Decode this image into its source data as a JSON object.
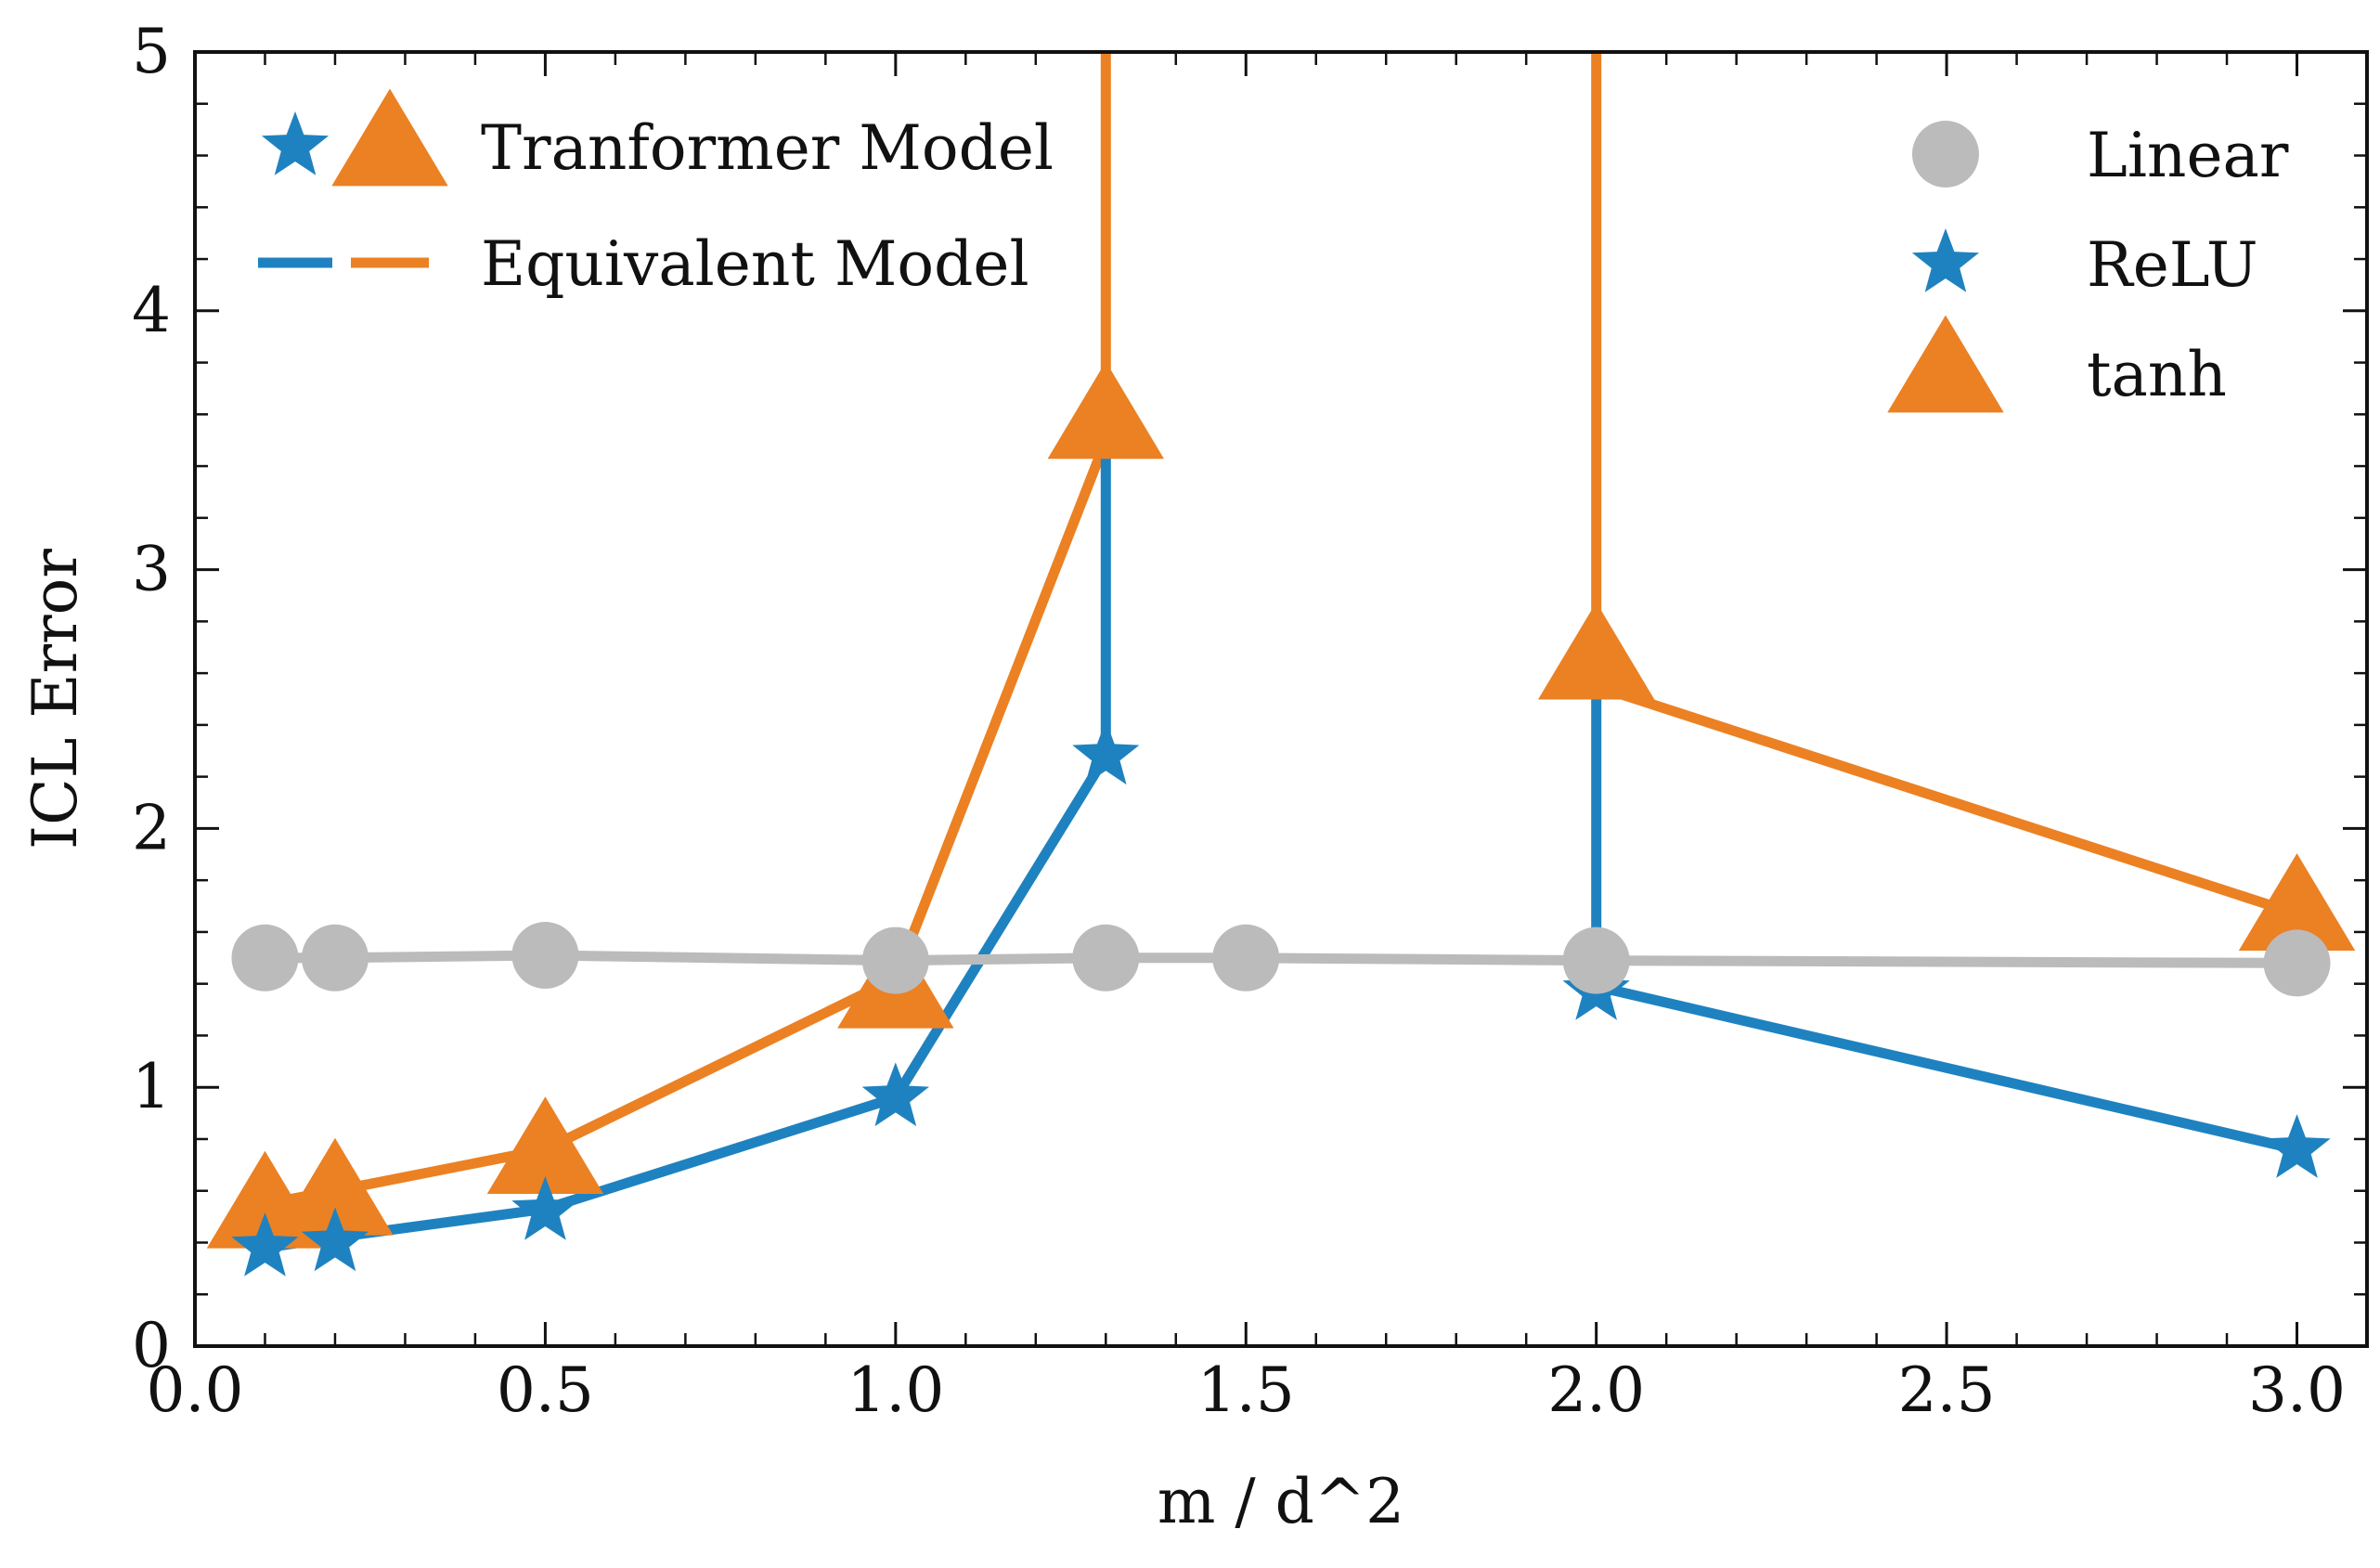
{
  "chart_data": {
    "type": "line",
    "xlabel": "m / d^2",
    "ylabel": "ICL Error",
    "xlim": [
      0.0,
      3.1
    ],
    "ylim": [
      0,
      5
    ],
    "xticks": [
      0.0,
      0.5,
      1.0,
      1.5,
      2.0,
      2.5,
      3.0
    ],
    "xtick_labels": [
      "0.0",
      "0.5",
      "1.0",
      "1.5",
      "2.0",
      "2.5",
      "3.0"
    ],
    "yticks": [
      0,
      1,
      2,
      3,
      4,
      5
    ],
    "ytick_labels": [
      "0",
      "1",
      "2",
      "3",
      "4",
      "5"
    ],
    "x_minor_step": 0.1,
    "y_minor_step": 0.2,
    "series": [
      {
        "name": "Linear",
        "color": "#bbbbbb",
        "marker": "circle",
        "points": [
          [
            0.1,
            1.5
          ],
          [
            0.2,
            1.5
          ],
          [
            0.5,
            1.51
          ],
          [
            1.0,
            1.49
          ],
          [
            1.3,
            1.5
          ],
          [
            1.5,
            1.5
          ],
          [
            2.0,
            1.49
          ],
          [
            3.0,
            1.48
          ]
        ]
      },
      {
        "name": "ReLU",
        "color": "#1f82c0",
        "marker": "star",
        "points": [
          [
            0.1,
            0.38
          ],
          [
            0.2,
            0.4
          ],
          [
            0.5,
            0.52
          ],
          [
            1.0,
            0.96
          ],
          [
            1.3,
            2.28
          ],
          [
            2.0,
            1.37
          ],
          [
            3.0,
            0.76
          ]
        ],
        "equivalent_line": [
          [
            0.1,
            0.38
          ],
          [
            0.2,
            0.42
          ],
          [
            0.5,
            0.53
          ],
          [
            1.0,
            0.96
          ],
          [
            1.3,
            2.28
          ],
          [
            1.3,
            3.45
          ],
          [
            null,
            null
          ],
          [
            2.0,
            2.58
          ],
          [
            2.0,
            1.39
          ],
          [
            3.0,
            0.76
          ]
        ]
      },
      {
        "name": "tanh",
        "color": "#eb8123",
        "marker": "triangle",
        "points": [
          [
            0.1,
            0.53
          ],
          [
            0.2,
            0.58
          ],
          [
            0.5,
            0.74
          ],
          [
            1.0,
            1.38
          ],
          [
            1.3,
            3.58
          ],
          [
            2.0,
            2.65
          ],
          [
            3.0,
            1.68
          ]
        ],
        "equivalent_line": [
          [
            0.1,
            0.55
          ],
          [
            0.2,
            0.6
          ],
          [
            0.5,
            0.76
          ],
          [
            1.0,
            1.42
          ],
          [
            1.3,
            3.5
          ],
          [
            1.3,
            5.0
          ],
          [
            null,
            null
          ],
          [
            2.0,
            5.0
          ],
          [
            2.0,
            2.55
          ],
          [
            3.0,
            1.67
          ]
        ]
      }
    ],
    "legend_left": {
      "position": "top-left",
      "entries": [
        {
          "label": "Tranformer Model",
          "markers": [
            "star",
            "triangle"
          ]
        },
        {
          "label": "Equivalent Model",
          "lines": [
            "#1f82c0",
            "#eb8123"
          ]
        }
      ]
    },
    "legend_right": {
      "position": "top-right",
      "entries": [
        {
          "label": "Linear",
          "marker": "circle",
          "color": "#bbbbbb"
        },
        {
          "label": "ReLU",
          "marker": "star",
          "color": "#1f82c0"
        },
        {
          "label": "tanh",
          "marker": "triangle",
          "color": "#eb8123"
        }
      ]
    }
  }
}
